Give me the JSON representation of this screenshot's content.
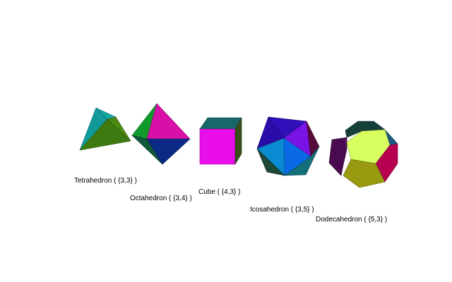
{
  "solids": [
    {
      "key": "tetrahedron",
      "label": "Tetrahedron ( {3,3} )"
    },
    {
      "key": "octahedron",
      "label": "Octahedron ( {3,4} )"
    },
    {
      "key": "cube",
      "label": "Cube ( {4,3} )"
    },
    {
      "key": "icosahedron",
      "label": "Icosahedron ( {3,5} )"
    },
    {
      "key": "dodecahedron",
      "label": "Dodecahedron ( {5,3} )"
    }
  ],
  "face_colors": {
    "tetrahedron": [
      "#129a9a",
      "#3d7a10"
    ],
    "octahedron": [
      "#119a2c",
      "#d910a8",
      "#0b2a86"
    ],
    "cube": [
      "#176868",
      "#ea0fea",
      "#3a4e1a"
    ],
    "icosahedron": [
      "#2a0ca8",
      "#7a14e6",
      "#0a8ad0",
      "#0a6ae6",
      "#13707a",
      "#1e4836"
    ],
    "dodecahedron": [
      "#173f3a",
      "#d8ff60",
      "#4a0a50",
      "#b7004f",
      "#9a9a10",
      "#1a5a80"
    ]
  }
}
